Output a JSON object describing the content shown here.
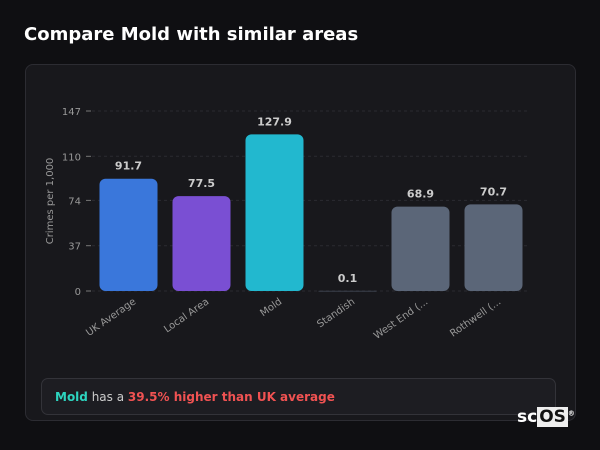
{
  "title": "Compare Mold with similar areas",
  "chart_data": {
    "type": "bar",
    "title": "",
    "ylabel": "Crimes per 1,000",
    "xlabel": "",
    "ylim": [
      0,
      147
    ],
    "yticks": [
      0,
      37,
      74,
      110,
      147
    ],
    "grid": true,
    "categories": [
      "UK Average",
      "Local Area",
      "Mold",
      "Standish",
      "West End (...",
      "Rothwell (..."
    ],
    "values": [
      91.7,
      77.5,
      127.9,
      0.1,
      68.9,
      70.7
    ],
    "labels": [
      "91.7",
      "77.5",
      "127.9",
      "0.1",
      "68.9",
      "70.7"
    ],
    "colors": [
      "#3a77db",
      "#7a4fd3",
      "#22b8cf",
      "#5b6678",
      "#5b6678",
      "#5b6678"
    ]
  },
  "note": {
    "area": "Mold",
    "text": " has a ",
    "highlight": "39.5% higher than UK average",
    "area_color": "#2dd4bf",
    "highlight_color": "#f05252"
  },
  "logo": {
    "prefix": "sc",
    "box": "OS",
    "mark": "®"
  }
}
